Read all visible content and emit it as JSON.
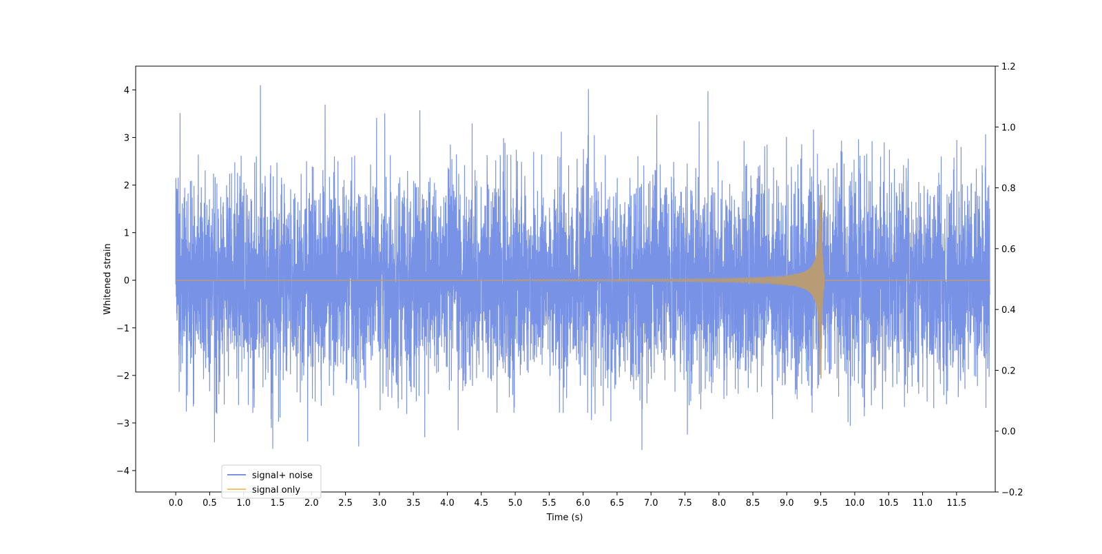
{
  "chart_data": {
    "type": "line",
    "title": "",
    "xlabel": "Time (s)",
    "ylabel": "Whitened strain",
    "xlim": [
      -0.59,
      12.07
    ],
    "ylim": [
      -4.45,
      4.5
    ],
    "x_ticks": [
      "0.0",
      "0.5",
      "1.0",
      "1.5",
      "2.0",
      "2.5",
      "3.0",
      "3.5",
      "4.0",
      "4.5",
      "5.0",
      "5.5",
      "6.0",
      "6.5",
      "7.0",
      "7.5",
      "8.0",
      "8.5",
      "9.0",
      "9.5",
      "10.0",
      "10.5",
      "11.0",
      "11.5"
    ],
    "y_ticks": [
      "4",
      "3",
      "2",
      "1",
      "0",
      "−1",
      "−2",
      "−3",
      "−4"
    ],
    "y_tick_values": [
      4,
      3,
      2,
      1,
      0,
      -1,
      -2,
      -3,
      -4
    ],
    "right_axis": {
      "ylim": [
        -0.2,
        1.2
      ],
      "ticks": [
        "1.2",
        "1.0",
        "0.8",
        "0.6",
        "0.4",
        "0.2",
        "0.0",
        "−0.2"
      ],
      "tick_values": [
        1.2,
        1.0,
        0.8,
        0.6,
        0.4,
        0.2,
        0.0,
        -0.2
      ]
    },
    "grid": false,
    "legend": {
      "position": "lower-left"
    },
    "series": [
      {
        "name": "signal+ noise",
        "color": "#7892e6",
        "description_values": {
          "t_start": 0.0,
          "t_end": 11.99,
          "typical_range": [
            -2.4,
            2.4
          ],
          "max_peak": 4.1,
          "min_peak": -4.0
        }
      },
      {
        "name": "signal only",
        "color": "#f5c26a",
        "chirp": {
          "t_start": 0.0,
          "t_merger": 9.5,
          "peak_amplitude": 2.7,
          "after_merger": 0
        }
      }
    ],
    "overlap_color": "#b89c76"
  }
}
